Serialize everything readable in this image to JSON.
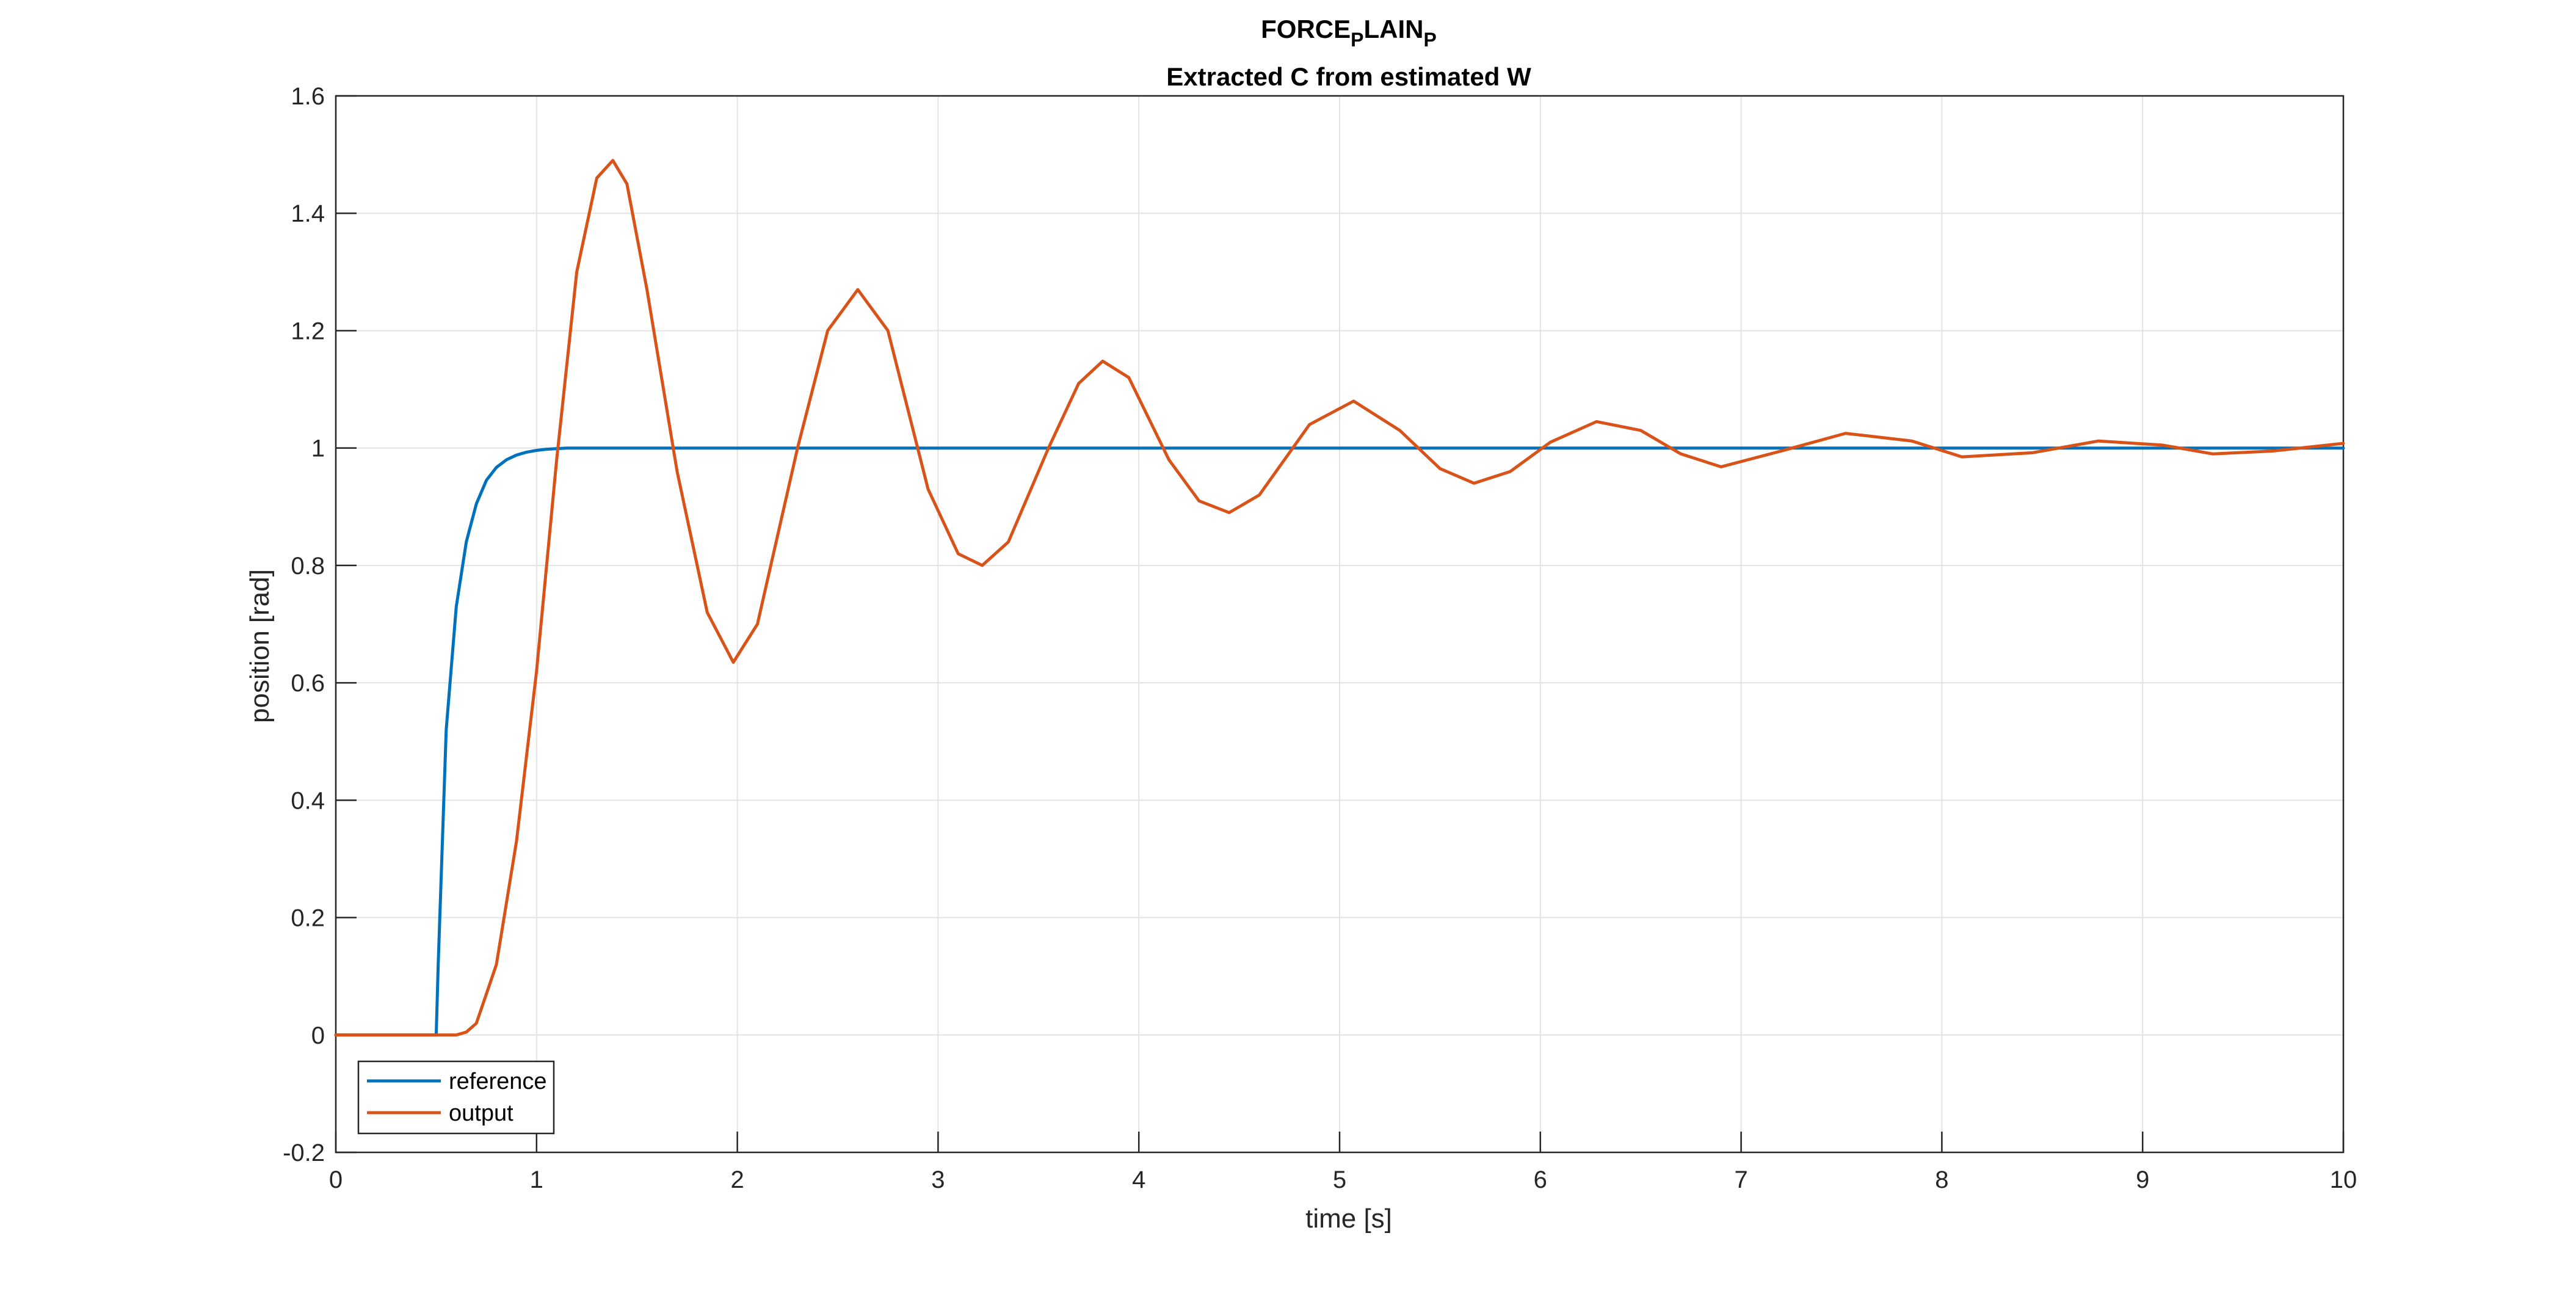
{
  "chart_data": {
    "type": "line",
    "title_main": "FORCE",
    "title_sub1": "P",
    "title_mid": "LAIN",
    "title_sub2": "P",
    "subtitle": "Extracted C from estimated W",
    "xlabel": "time [s]",
    "ylabel": "position [rad]",
    "xlim": [
      0,
      10
    ],
    "ylim": [
      -0.2,
      1.6
    ],
    "xticks": [
      0,
      1,
      2,
      3,
      4,
      5,
      6,
      7,
      8,
      9,
      10
    ],
    "xtick_labels": [
      "0",
      "1",
      "2",
      "3",
      "4",
      "5",
      "6",
      "7",
      "8",
      "9",
      "10"
    ],
    "yticks": [
      -0.2,
      0,
      0.2,
      0.4,
      0.6,
      0.8,
      1,
      1.2,
      1.4,
      1.6
    ],
    "ytick_labels": [
      "-0.2",
      "0",
      "0.2",
      "0.4",
      "0.6",
      "0.8",
      "1",
      "1.2",
      "1.4",
      "1.6"
    ],
    "grid": true,
    "legend_position": "bottom-left",
    "series": [
      {
        "name": "reference",
        "color": "#0072BD",
        "x": [
          0,
          0.5,
          0.51,
          0.55,
          0.6,
          0.65,
          0.7,
          0.75,
          0.8,
          0.85,
          0.9,
          0.95,
          1.0,
          1.05,
          1.1,
          1.15,
          1.2,
          1.3,
          1.5,
          10
        ],
        "y": [
          0,
          0,
          0.12,
          0.52,
          0.73,
          0.84,
          0.905,
          0.945,
          0.967,
          0.98,
          0.988,
          0.993,
          0.996,
          0.998,
          0.999,
          1.0,
          1.0,
          1.0,
          1.0,
          1.0
        ]
      },
      {
        "name": "output",
        "color": "#D95319",
        "x": [
          0,
          0.5,
          0.6,
          0.65,
          0.7,
          0.8,
          0.9,
          1.0,
          1.1,
          1.2,
          1.3,
          1.38,
          1.45,
          1.55,
          1.7,
          1.85,
          1.98,
          2.1,
          2.3,
          2.45,
          2.6,
          2.75,
          2.95,
          3.1,
          3.22,
          3.35,
          3.55,
          3.7,
          3.82,
          3.95,
          4.15,
          4.3,
          4.45,
          4.6,
          4.85,
          5.07,
          5.3,
          5.5,
          5.67,
          5.85,
          6.05,
          6.28,
          6.5,
          6.7,
          6.9,
          7.2,
          7.52,
          7.85,
          8.1,
          8.45,
          8.78,
          9.1,
          9.35,
          9.65,
          10
        ],
        "y": [
          0,
          0,
          0,
          0.005,
          0.02,
          0.12,
          0.33,
          0.62,
          0.98,
          1.3,
          1.46,
          1.49,
          1.45,
          1.27,
          0.96,
          0.72,
          0.635,
          0.7,
          1.0,
          1.2,
          1.27,
          1.2,
          0.93,
          0.82,
          0.8,
          0.84,
          1.0,
          1.11,
          1.148,
          1.12,
          0.98,
          0.91,
          0.89,
          0.92,
          1.04,
          1.08,
          1.03,
          0.965,
          0.94,
          0.96,
          1.01,
          1.045,
          1.03,
          0.99,
          0.968,
          0.995,
          1.025,
          1.012,
          0.985,
          0.992,
          1.012,
          1.005,
          0.99,
          0.995,
          1.008
        ]
      }
    ]
  }
}
